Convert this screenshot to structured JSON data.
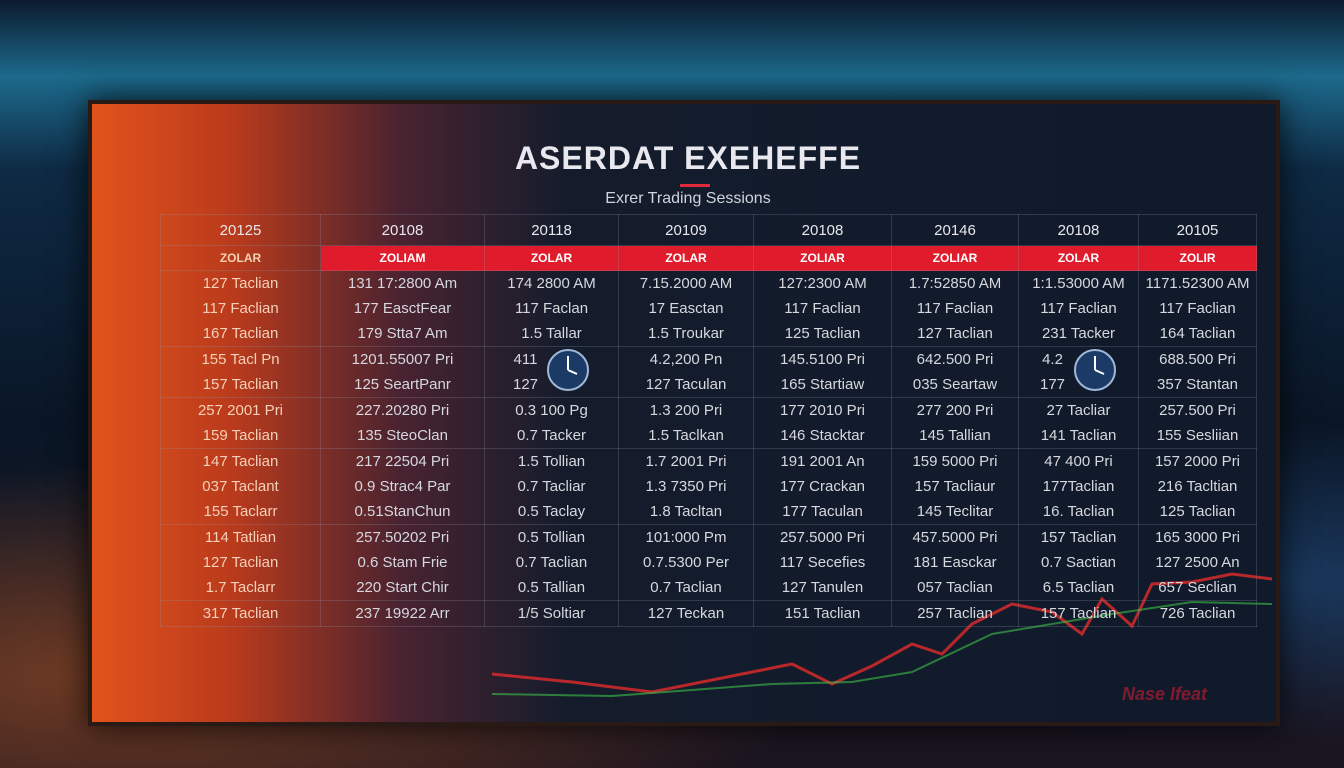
{
  "header": {
    "title": "ASERDAT EXEHEFFE",
    "subtitle": "Exrer Trading Sessions"
  },
  "table": {
    "years": [
      "20125",
      "20108",
      "20118",
      "20109",
      "20108",
      "20146",
      "20108",
      "20105"
    ],
    "labels": [
      "ZOLAR",
      "ZOLIAM",
      "ZOLAR",
      "ZOLAR",
      "ZOLIAR",
      "ZOLIAR",
      "ZOLAR",
      "ZOLIR"
    ],
    "rows": [
      [
        [
          "127 Taclian",
          "117 Faclian",
          "167 Taclian"
        ],
        [
          "131 17:2800 Am",
          "177 EasctFear",
          "179 Stta7 Am"
        ],
        [
          "174 2800 AM",
          "117 Faclan",
          "1.5 Tallar"
        ],
        [
          "7.15.2000 AM",
          "17 Easctan",
          "1.5 Troukar"
        ],
        [
          "127:2300 AM",
          "117 Faclian",
          "125 Taclian"
        ],
        [
          "1.7:52850 AM",
          "117 Faclian",
          "127 Taclian"
        ],
        [
          "1:1.53000 AM",
          "117 Faclian",
          "231 Tacker"
        ],
        [
          "1171.52300 AM",
          "117 Faclian",
          "164 Taclian"
        ]
      ],
      [
        [
          "155 Tacl Pn",
          "157 Taclian"
        ],
        [
          "1201.55007 Pri",
          "125 SeartPanr"
        ],
        [
          "411",
          "127"
        ],
        [
          "4.2,200 Pn",
          "127 Taculan"
        ],
        [
          "145.5100 Pri",
          "165 Startiaw"
        ],
        [
          "642.500 Pri",
          "035 Seartaw"
        ],
        [
          "4.2",
          "177"
        ],
        [
          "688.500 Pri",
          "357 Stantan"
        ]
      ],
      [
        [
          "257 2001 Pri",
          "159 Taclian"
        ],
        [
          "227.20280 Pri",
          "135 SteoClan"
        ],
        [
          "0.3 100 Pg",
          "0.7 Tacker"
        ],
        [
          "1.3 200 Pri",
          "1.5 Taclkan"
        ],
        [
          "177 2010 Pri",
          "146 Stacktar"
        ],
        [
          "277 200 Pri",
          "145 Tallian"
        ],
        [
          "27 Tacliar",
          "141 Taclian"
        ],
        [
          "257.500 Pri",
          "155 Sesliian"
        ]
      ],
      [
        [
          "147 Taclian",
          "037 Taclant",
          "155 Taclarr"
        ],
        [
          "217 22504 Pri",
          "0.9 Strac4 Par",
          "0.51StanChun"
        ],
        [
          "1.5 Tollian",
          "0.7 Tacliar",
          "0.5 Taclay"
        ],
        [
          "1.7 2001 Pri",
          "1.3 7350 Pri",
          "1.8 Tacltan"
        ],
        [
          "191 2001 An",
          "177 Crackan",
          "177 Taculan"
        ],
        [
          "159 5000 Pri",
          "157 Tacliaur",
          "145 Teclitar"
        ],
        [
          "47 400 Pri",
          "177Taclian",
          "16. Taclian"
        ],
        [
          "157 2000 Pri",
          "216 Tacltian",
          "125 Taclian"
        ]
      ],
      [
        [
          "114 Tatlian",
          "127 Taclian",
          "1.7 Taclarr"
        ],
        [
          "257.50202 Pri",
          "0.6 Stam Frie",
          "220 Start Chir"
        ],
        [
          "0.5 Tollian",
          "0.7 Taclian",
          "0.5 Tallian"
        ],
        [
          "101:000 Pm",
          "0.7.5300 Per",
          "0.7 Taclian"
        ],
        [
          "257.5000 Pri",
          "117 Secefies",
          "127 Tanulen"
        ],
        [
          "457.5000 Pri",
          "181 Easckar",
          "057 Taclian"
        ],
        [
          "157 Taclian",
          "0.7 Sactian",
          "6.5 Taclian"
        ],
        [
          "165 3000 Pri",
          "127 2500 An",
          "657 Seclian"
        ]
      ],
      [
        [
          "317 Taclian"
        ],
        [
          "237 19922 Arr"
        ],
        [
          "1/5 Soltiar"
        ],
        [
          "127 Teckan"
        ],
        [
          "151 Taclian"
        ],
        [
          "257 Taclian"
        ],
        [
          "157 Taclian"
        ],
        [
          "726 Taclian"
        ]
      ]
    ]
  },
  "footer": "Nase Ifeat"
}
